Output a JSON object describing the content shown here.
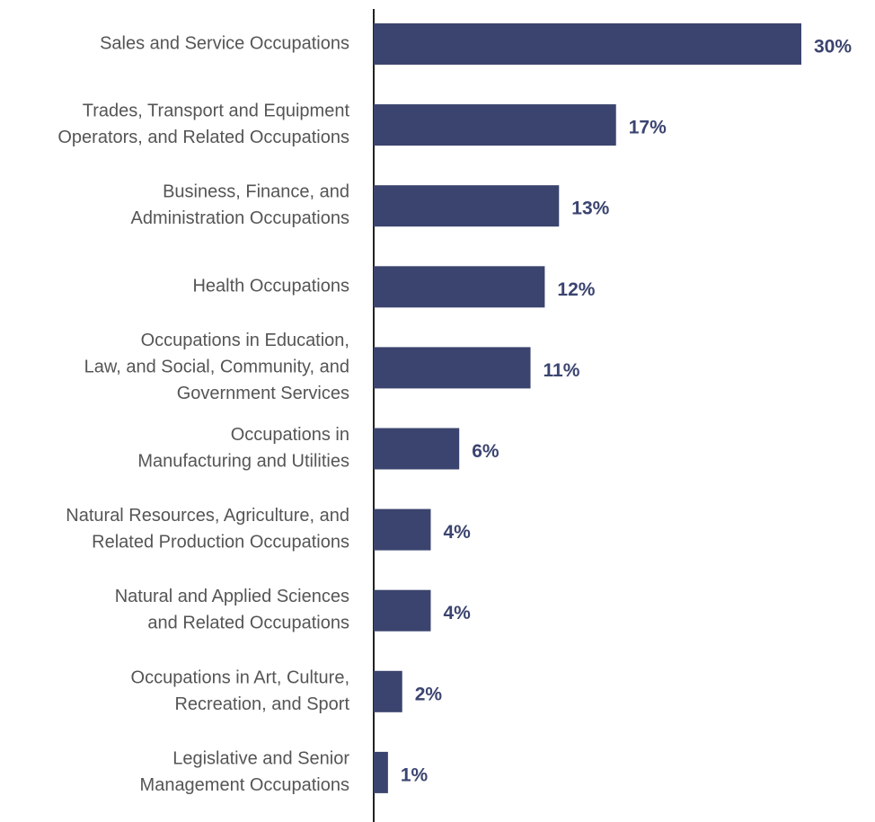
{
  "chart_data": {
    "type": "bar",
    "orientation": "horizontal",
    "categories": [
      [
        "Sales and Service Occupations"
      ],
      [
        "Trades, Transport and Equipment",
        "Operators, and Related Occupations"
      ],
      [
        "Business, Finance, and",
        "Administration Occupations"
      ],
      [
        "Health Occupations"
      ],
      [
        "Occupations in Education,",
        "Law, and Social, Community, and",
        "Government Services"
      ],
      [
        "Occupations in",
        "Manufacturing and Utilities"
      ],
      [
        "Natural Resources, Agriculture, and",
        "Related Production Occupations"
      ],
      [
        "Natural and Applied Sciences",
        "and Related Occupations"
      ],
      [
        "Occupations in Art, Culture,",
        "Recreation, and Sport"
      ],
      [
        "Legislative and Senior",
        "Management Occupations"
      ]
    ],
    "values": [
      30,
      17,
      13,
      12,
      11,
      6,
      4,
      4,
      2,
      1
    ],
    "value_labels": [
      "30%",
      "17%",
      "13%",
      "12%",
      "11%",
      "6%",
      "4%",
      "4%",
      "2%",
      "1%"
    ],
    "color": "#3b446e",
    "xlim": [
      0,
      30
    ]
  }
}
